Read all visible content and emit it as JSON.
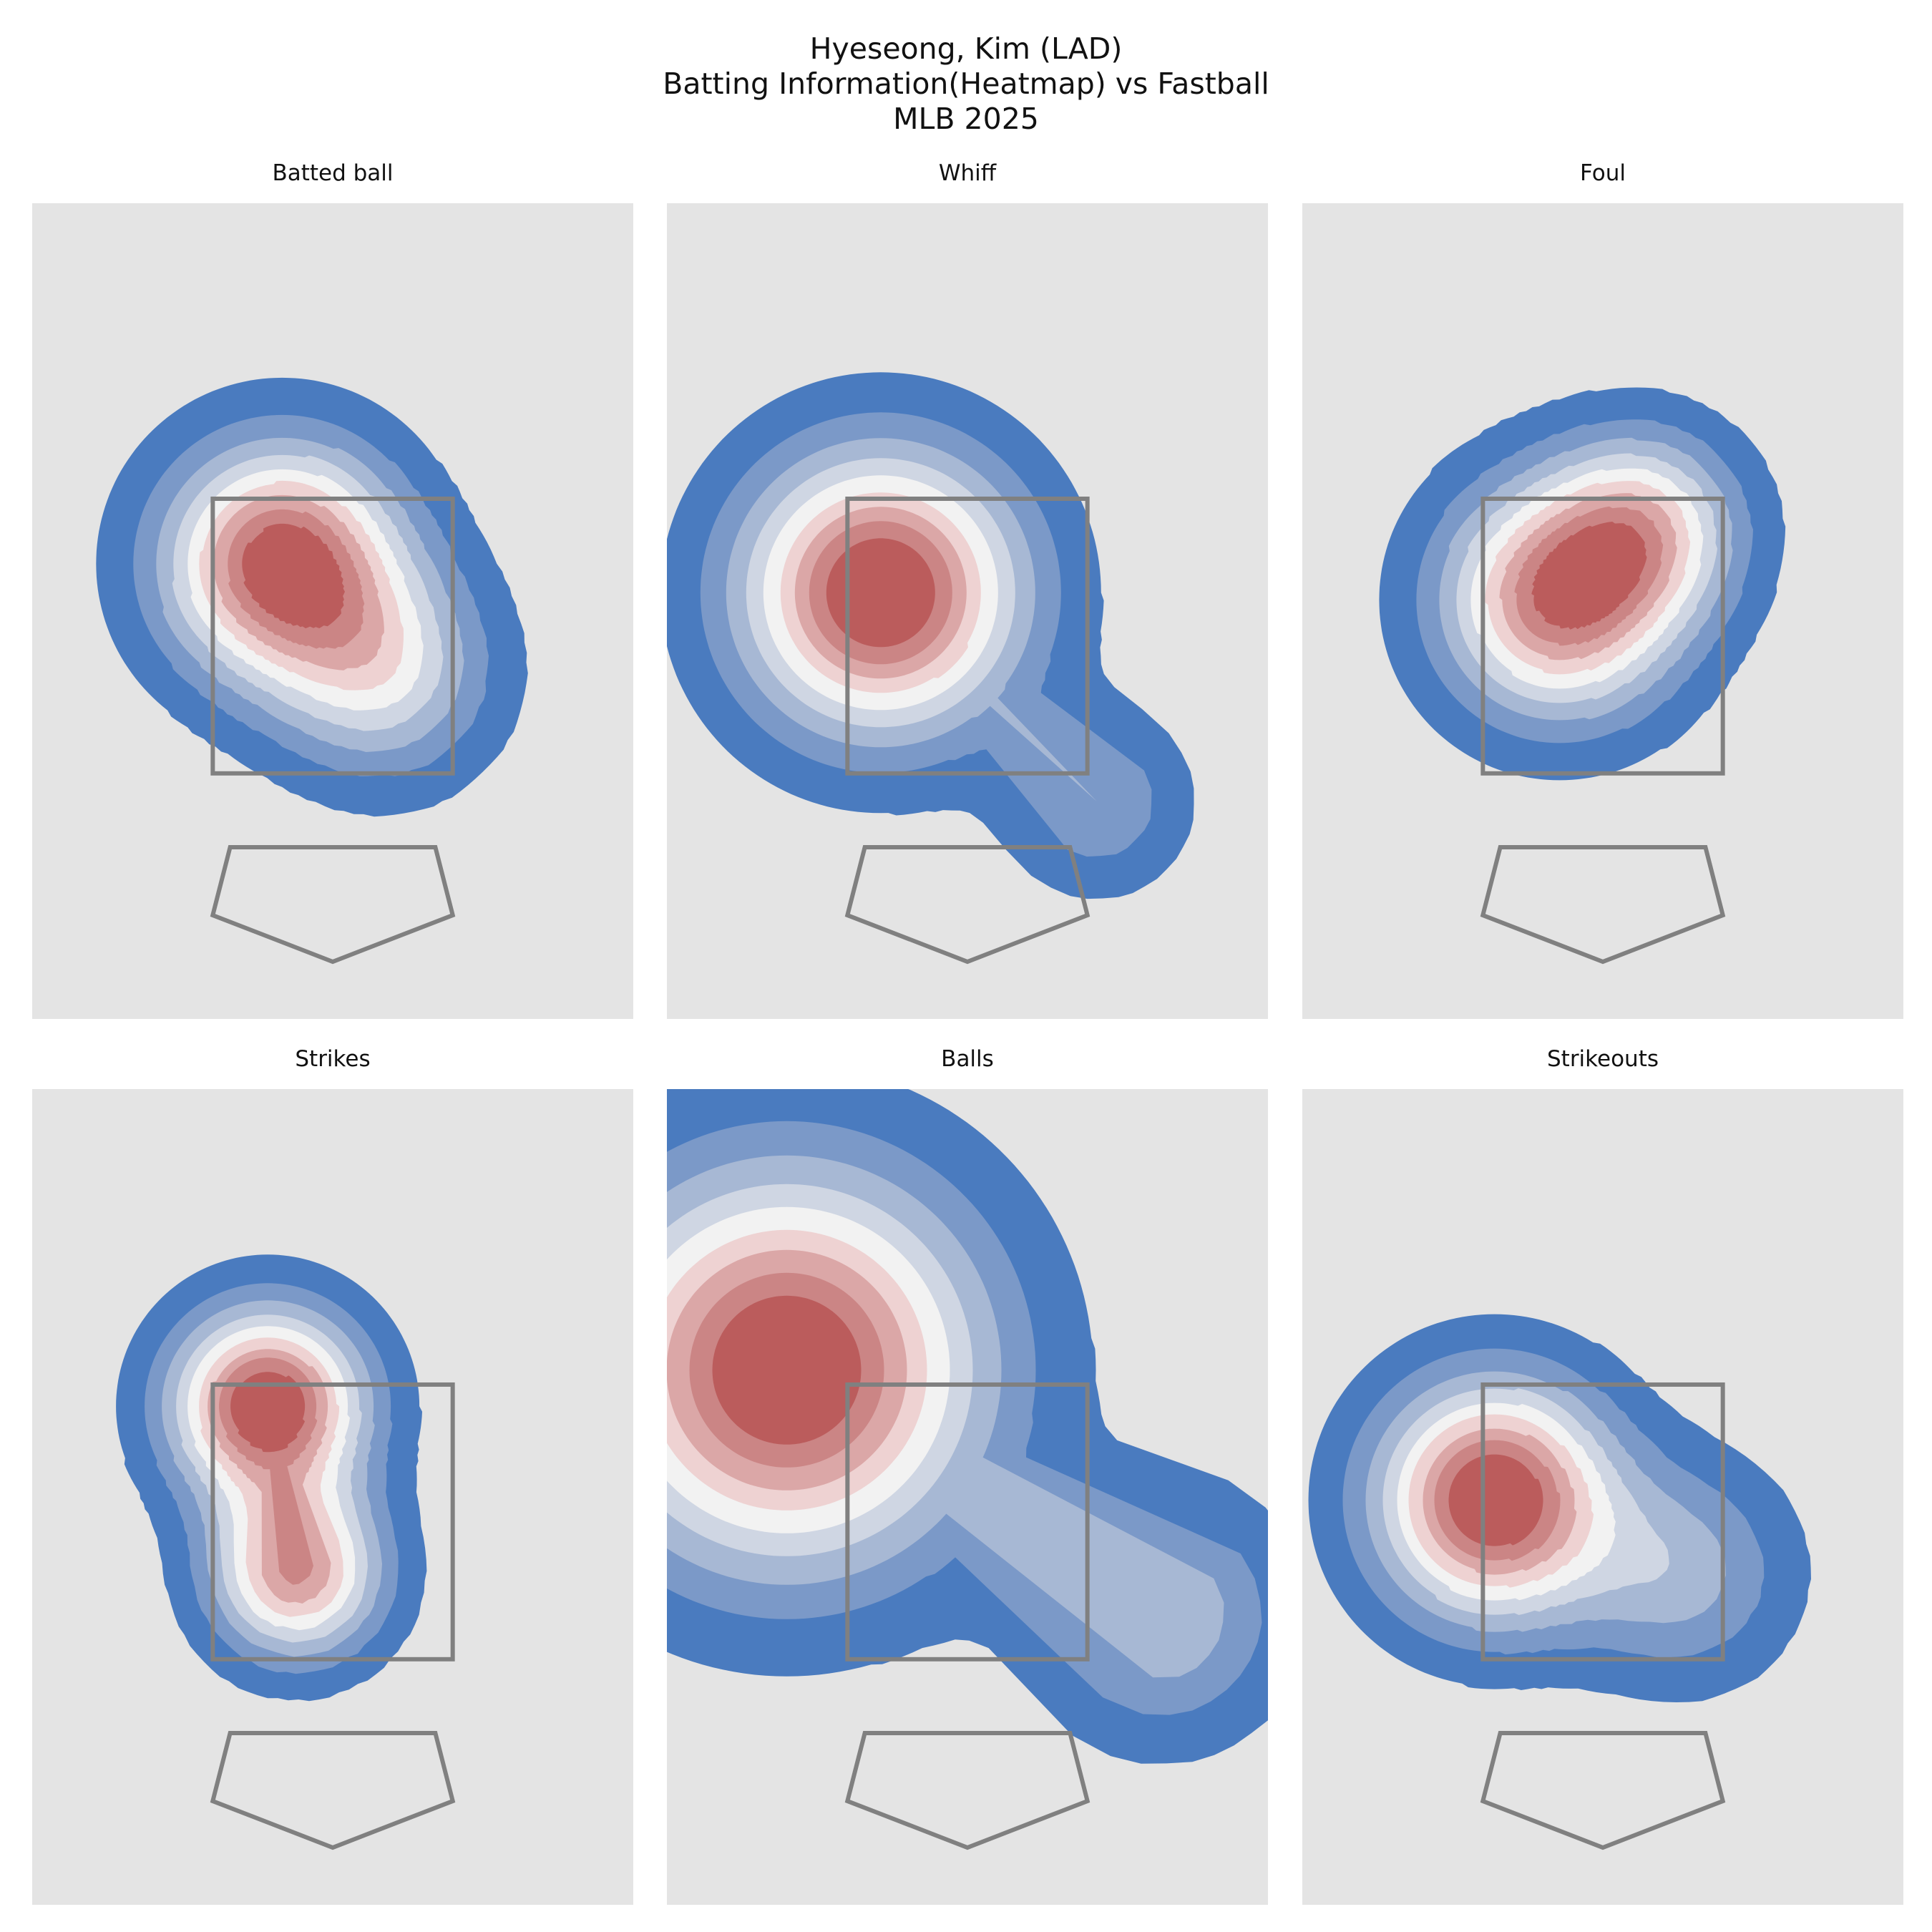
{
  "figure": {
    "title_lines": [
      "Hyeseong, Kim (LAD)",
      "Batting Information(Heatmap) vs Fastball",
      "MLB 2025"
    ]
  },
  "colors": {
    "panel_background": "#e4e4e4",
    "strike_zone": "#808080",
    "home_plate": "#808080",
    "level_colors": [
      "#4a7bbf",
      "#7b99c8",
      "#a7b8d4",
      "#cfd6e3",
      "#f2f2f2",
      "#eed2d2",
      "#dba7a7",
      "#cb8585",
      "#bb5c5c"
    ]
  },
  "chart_data": [
    {
      "type": "heatmap",
      "title": "Batted ball",
      "levels": 9,
      "peaks": [
        {
          "plate_x": -0.35,
          "plate_z": 3.05,
          "spread": 0.55,
          "weight": 1.0
        },
        {
          "plate_x": 0.35,
          "plate_z": 2.3,
          "spread": 0.5,
          "weight": 0.45
        }
      ]
    },
    {
      "type": "heatmap",
      "title": "Whiff",
      "levels": 9,
      "peaks": [
        {
          "plate_x": -0.6,
          "plate_z": 2.85,
          "spread": 0.65,
          "weight": 1.0
        },
        {
          "plate_x": 0.9,
          "plate_z": 1.4,
          "spread": 0.4,
          "weight": 0.25
        }
      ]
    },
    {
      "type": "heatmap",
      "title": "Foul",
      "levels": 9,
      "peaks": [
        {
          "plate_x": -0.3,
          "plate_z": 2.8,
          "spread": 0.55,
          "weight": 1.0
        },
        {
          "plate_x": 0.3,
          "plate_z": 3.3,
          "spread": 0.45,
          "weight": 0.6
        }
      ]
    },
    {
      "type": "heatmap",
      "title": "Strikes",
      "levels": 9,
      "peaks": [
        {
          "plate_x": -0.45,
          "plate_z": 3.35,
          "spread": 0.45,
          "weight": 1.0
        },
        {
          "plate_x": -0.25,
          "plate_z": 2.2,
          "spread": 0.4,
          "weight": 0.75
        }
      ]
    },
    {
      "type": "heatmap",
      "title": "Balls",
      "levels": 9,
      "peaks": [
        {
          "plate_x": -1.25,
          "plate_z": 3.6,
          "spread": 0.9,
          "weight": 1.0
        },
        {
          "plate_x": 1.35,
          "plate_z": 1.9,
          "spread": 0.55,
          "weight": 0.35
        }
      ]
    },
    {
      "type": "heatmap",
      "title": "Strikeouts",
      "levels": 9,
      "peaks": [
        {
          "plate_x": -0.75,
          "plate_z": 2.7,
          "spread": 0.55,
          "weight": 1.0
        },
        {
          "plate_x": 0.55,
          "plate_z": 2.2,
          "spread": 0.5,
          "weight": 0.3
        }
      ]
    }
  ]
}
